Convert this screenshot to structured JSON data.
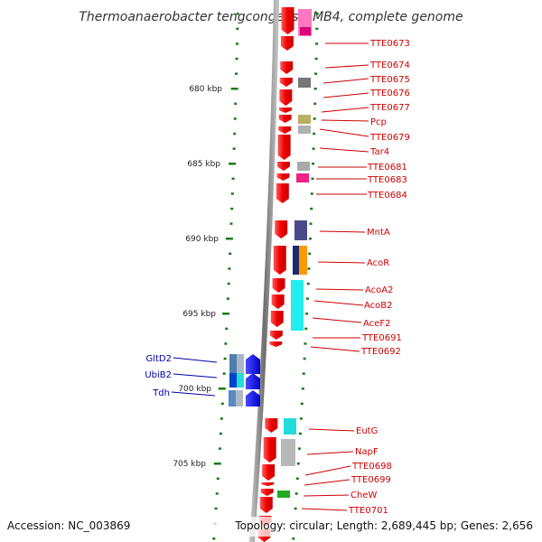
{
  "title": "Thermoanaerobacter tengcongensis MB4, complete genome",
  "kbp_marks": [
    {
      "label": "680 kbp"
    },
    {
      "label": "685 kbp"
    },
    {
      "label": "690 kbp"
    },
    {
      "label": "695 kbp"
    },
    {
      "label": "700 kbp"
    },
    {
      "label": "705 kbp"
    }
  ],
  "right_genes": [
    "TTE0673",
    "TTE0674",
    "TTE0675",
    "TTE0676",
    "TTE0677",
    "Pcp",
    "TTE0679",
    "Tar4",
    "TTE0681",
    "TTE0683",
    "TTE0684",
    "MntA",
    "AcoR",
    "AcoA2",
    "AcoB2",
    "AceF2",
    "TTE0691",
    "TTE0692",
    "EutG",
    "NapF",
    "TTE0698",
    "TTE0699",
    "CheW",
    "TTE0701"
  ],
  "left_genes": [
    "GltD2",
    "UbiB2",
    "Tdh"
  ],
  "footer": {
    "accession": "Accession: NC_003869",
    "info": "Topology: circular; Length: 2,689,445 bp; Genes: 2,656"
  },
  "colors": {
    "forward_gene": "#ee0000",
    "reverse_gene": "#0000ee",
    "label_red": "#cc0000",
    "label_blue": "#0000aa",
    "backbone": "#888888",
    "tick_green": "#1a7a1a"
  }
}
